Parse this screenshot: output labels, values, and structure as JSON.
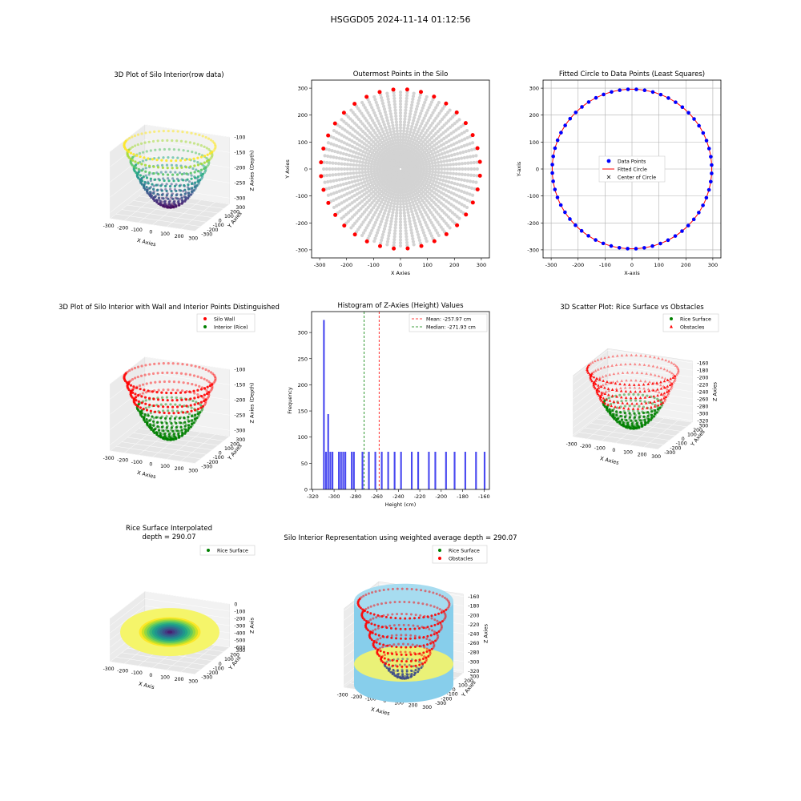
{
  "figure": {
    "suptitle": "HSGGD05 2024-11-14 01:12:56"
  },
  "colors": {
    "wall": "#ff0000",
    "interior": "#008000",
    "grey": "#d3d3d3",
    "blue": "#0000ff",
    "hist": "#4a4af0",
    "sky": "#87ceeb",
    "yellow": "#f5f56a",
    "pane": "#f2f2f2"
  },
  "chart_data": [
    {
      "id": "p1",
      "type": "scatter3d",
      "title": "3D Plot of Silo Interior(row data)",
      "xlabel": "X Axies",
      "ylabel": "Y Axies",
      "zlabel": "Z Axies (Depth)",
      "x_ticks": [
        "-300",
        "-200",
        "-100",
        "0",
        "100",
        "200",
        "300"
      ],
      "y_ticks": [
        "-300",
        "-200",
        "-100",
        "0",
        "100",
        "200",
        "300"
      ],
      "z_ticks": [
        "-100",
        "-150",
        "-200",
        "-250",
        "-300"
      ],
      "xlim": [
        -300,
        300
      ],
      "ylim": [
        -300,
        300
      ],
      "zlim": [
        -320,
        -100
      ],
      "colormap": "viridis"
    },
    {
      "id": "p2",
      "type": "scatter",
      "title": "Outermost Points in the Silo",
      "xlabel": "X Axies",
      "ylabel": "Y Axies",
      "x_ticks": [
        "-300",
        "-200",
        "-100",
        "0",
        "100",
        "200",
        "300"
      ],
      "y_ticks": [
        "300",
        "200",
        "100",
        "0",
        "-100",
        "-200",
        "-300"
      ],
      "xlim": [
        -330,
        330
      ],
      "ylim": [
        -330,
        330
      ],
      "outer_radius": 296,
      "rays": 72,
      "outer_points": 36
    },
    {
      "id": "p3",
      "type": "scatter",
      "title": "Fitted Circle to Data Points (Least Squares)",
      "xlabel": "X-axis",
      "ylabel": "Y-axis",
      "x_ticks": [
        "-300",
        "-200",
        "-100",
        "0",
        "100",
        "200",
        "300"
      ],
      "y_ticks": [
        "300",
        "200",
        "100",
        "0",
        "-100",
        "-200",
        "-300"
      ],
      "xlim": [
        -330,
        330
      ],
      "ylim": [
        -330,
        330
      ],
      "radius": 296,
      "center": [
        0,
        0
      ],
      "legend": [
        "Data Points",
        "Fitted Circle",
        "Center of Circle"
      ]
    },
    {
      "id": "p4",
      "type": "scatter3d",
      "title": "3D Plot of Silo Interior with Wall and Interior Points Distinguished",
      "xlabel": "X Axies",
      "ylabel": "Y Axies",
      "zlabel": "Z Axies (Depth)",
      "x_ticks": [
        "-300",
        "-200",
        "-100",
        "0",
        "100",
        "200",
        "300"
      ],
      "y_ticks": [
        "-300",
        "-200",
        "-100",
        "0",
        "100",
        "200",
        "300"
      ],
      "z_ticks": [
        "-100",
        "-150",
        "-200",
        "-250",
        "-300"
      ],
      "legend": [
        "Silo Wall",
        "Interior (Rice)"
      ]
    },
    {
      "id": "p5",
      "type": "bar",
      "title": "Histogram of Z-Axies (Height) Values",
      "xlabel": "Height (cm)",
      "ylabel": "Frequency",
      "x_ticks": [
        "-320",
        "-300",
        "-280",
        "-260",
        "-240",
        "-220",
        "-200",
        "-180",
        "-160"
      ],
      "y_ticks": [
        "0",
        "50",
        "100",
        "150",
        "200",
        "250",
        "300"
      ],
      "xlim": [
        -321,
        -155
      ],
      "ylim": [
        0,
        340
      ],
      "bins": [
        {
          "x": -309.5,
          "count": 324
        },
        {
          "x": -307.5,
          "count": 72
        },
        {
          "x": -305.5,
          "count": 144
        },
        {
          "x": -303.5,
          "count": 72
        },
        {
          "x": -301.5,
          "count": 72
        },
        {
          "x": -295.5,
          "count": 72
        },
        {
          "x": -293.5,
          "count": 72
        },
        {
          "x": -291.5,
          "count": 72
        },
        {
          "x": -289.5,
          "count": 72
        },
        {
          "x": -283.5,
          "count": 72
        },
        {
          "x": -281.5,
          "count": 72
        },
        {
          "x": -273.5,
          "count": 72
        },
        {
          "x": -267.5,
          "count": 72
        },
        {
          "x": -261.5,
          "count": 72
        },
        {
          "x": -255.5,
          "count": 72
        },
        {
          "x": -249.5,
          "count": 72
        },
        {
          "x": -243.5,
          "count": 72
        },
        {
          "x": -237.5,
          "count": 72
        },
        {
          "x": -227.5,
          "count": 72
        },
        {
          "x": -221.5,
          "count": 72
        },
        {
          "x": -211.5,
          "count": 72
        },
        {
          "x": -205.5,
          "count": 72
        },
        {
          "x": -195.5,
          "count": 72
        },
        {
          "x": -187.5,
          "count": 72
        },
        {
          "x": -177.5,
          "count": 72
        },
        {
          "x": -167.5,
          "count": 72
        },
        {
          "x": -159.5,
          "count": 72
        }
      ],
      "bin_width": 1.6,
      "mean": -257.97,
      "median": -271.93,
      "legend": [
        "Mean: -257.97 cm",
        "Median: -271.93 cm"
      ]
    },
    {
      "id": "p6",
      "type": "scatter3d",
      "title": "3D Scatter Plot: Rice Surface vs Obstacles",
      "xlabel": "X Axies",
      "ylabel": "Y Axies",
      "zlabel": "Z Axies",
      "x_ticks": [
        "-300",
        "-200",
        "-100",
        "0",
        "100",
        "200",
        "300"
      ],
      "y_ticks": [
        "-300",
        "-200",
        "-100",
        "0",
        "100",
        "200",
        "300"
      ],
      "z_ticks": [
        "-160",
        "-180",
        "-200",
        "-220",
        "-240",
        "-260",
        "-280",
        "-300",
        "-320"
      ],
      "legend": [
        "Rice Surface",
        "Obstacles"
      ]
    },
    {
      "id": "p7",
      "type": "surface3d",
      "title": "Rice Surface Interpolated",
      "subtitle": "depth = 290.07",
      "xlabel": "X Axis",
      "ylabel": "Y Axis",
      "zlabel": "Z Axis",
      "x_ticks": [
        "-300",
        "-200",
        "-100",
        "0",
        "100",
        "200",
        "300"
      ],
      "y_ticks": [
        "-300",
        "-200",
        "-100",
        "0",
        "100",
        "200",
        "300"
      ],
      "z_ticks": [
        "0",
        "-100",
        "-200",
        "-300",
        "-400",
        "-500",
        "-600"
      ],
      "legend": [
        "Rice Surface"
      ]
    },
    {
      "id": "p8",
      "type": "surface3d",
      "title": "Silo Interior Representation using weighted average depth = 290.07",
      "xlabel": "X Axies",
      "ylabel": "Y Axies",
      "zlabel": "Z Axies",
      "x_ticks": [
        "-300",
        "-200",
        "-100",
        "0",
        "100",
        "200",
        "300"
      ],
      "y_ticks": [
        "-300",
        "-200",
        "-100",
        "0",
        "100",
        "200",
        "300"
      ],
      "z_ticks": [
        "-160",
        "-180",
        "-200",
        "-220",
        "-240",
        "-260",
        "-280",
        "-300",
        "-320"
      ],
      "legend": [
        "Rice Surface",
        "Obstacles"
      ]
    }
  ]
}
